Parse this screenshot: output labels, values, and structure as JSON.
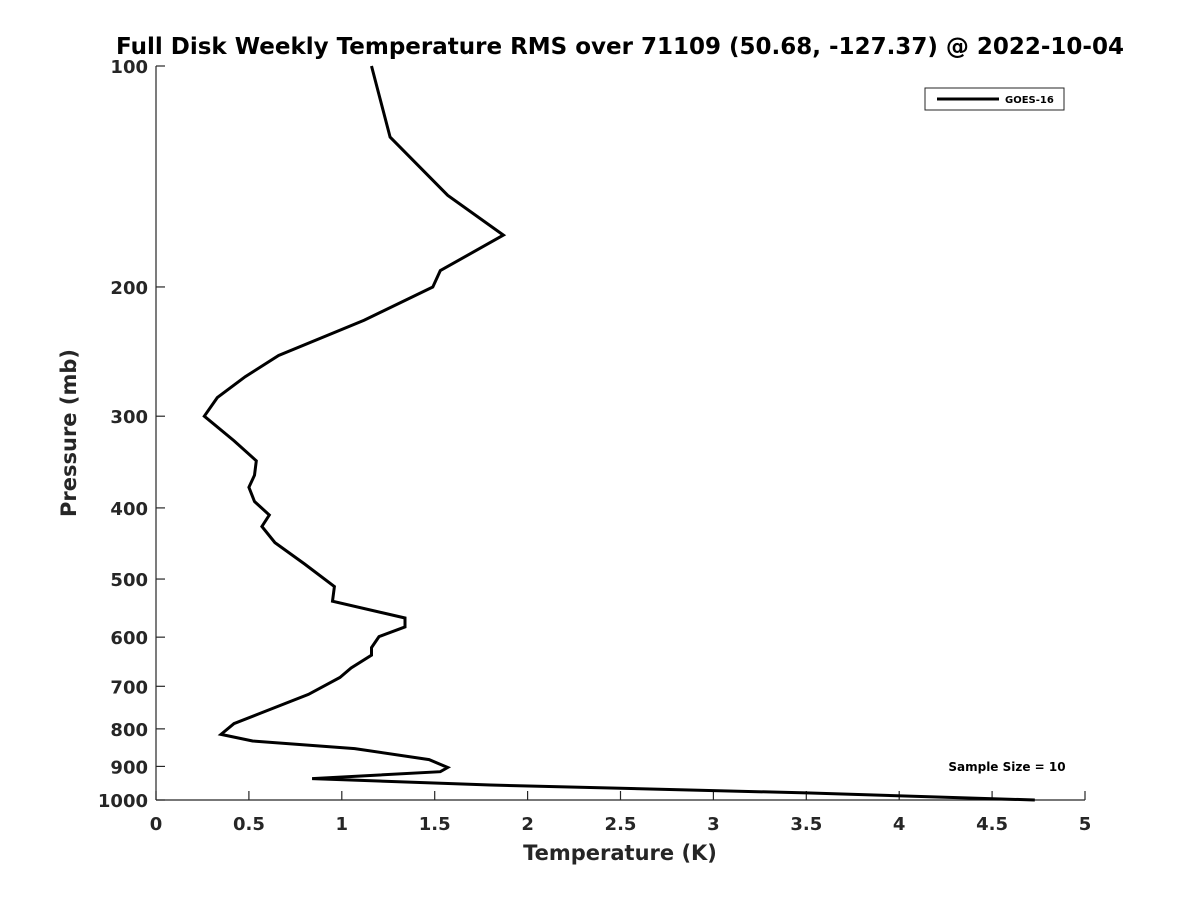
{
  "chart_data": {
    "type": "line",
    "title": "Full Disk Weekly Temperature RMS over 71109 (50.68, -127.37) @ 2022-10-04",
    "xlabel": "Temperature (K)",
    "ylabel": "Pressure (mb)",
    "xlim": [
      0,
      5
    ],
    "ylim": [
      100,
      1000
    ],
    "y_scale": "log",
    "y_reversed": true,
    "grid": false,
    "x_ticks": [
      0,
      0.5,
      1,
      1.5,
      2,
      2.5,
      3,
      3.5,
      4,
      4.5,
      5
    ],
    "x_tick_labels": [
      "0",
      "0.5",
      "1",
      "1.5",
      "2",
      "2.5",
      "3",
      "3.5",
      "4",
      "4.5",
      "5"
    ],
    "y_ticks": [
      100,
      200,
      300,
      400,
      500,
      600,
      700,
      800,
      900,
      1000
    ],
    "y_tick_labels": [
      "100",
      "200",
      "300",
      "400",
      "500",
      "600",
      "700",
      "800",
      "900",
      "1000"
    ],
    "legend": {
      "position": "top-right",
      "entries": [
        "GOES-16"
      ]
    },
    "annotation": "Sample Size = 10",
    "line_color": "#000000",
    "series": [
      {
        "name": "GOES-16",
        "points": [
          [
            1.16,
            100
          ],
          [
            1.26,
            125
          ],
          [
            1.57,
            150
          ],
          [
            1.87,
            170
          ],
          [
            1.53,
            190
          ],
          [
            1.49,
            200
          ],
          [
            1.12,
            222
          ],
          [
            0.66,
            248
          ],
          [
            0.48,
            265
          ],
          [
            0.33,
            283
          ],
          [
            0.26,
            300
          ],
          [
            0.42,
            324
          ],
          [
            0.54,
            345
          ],
          [
            0.53,
            361
          ],
          [
            0.5,
            375
          ],
          [
            0.53,
            392
          ],
          [
            0.61,
            409
          ],
          [
            0.57,
            424
          ],
          [
            0.64,
            446
          ],
          [
            0.8,
            477
          ],
          [
            0.96,
            512
          ],
          [
            0.95,
            536
          ],
          [
            1.34,
            565
          ],
          [
            1.34,
            581
          ],
          [
            1.2,
            599
          ],
          [
            1.16,
            620
          ],
          [
            1.16,
            635
          ],
          [
            1.05,
            661
          ],
          [
            0.99,
            681
          ],
          [
            0.82,
            718
          ],
          [
            0.56,
            762
          ],
          [
            0.42,
            787
          ],
          [
            0.35,
            814
          ],
          [
            0.52,
            831
          ],
          [
            1.07,
            851
          ],
          [
            1.47,
            881
          ],
          [
            1.57,
            903
          ],
          [
            1.53,
            915
          ],
          [
            0.84,
            935
          ],
          [
            1.8,
            954
          ],
          [
            3.5,
            978
          ],
          [
            4.73,
            1000
          ]
        ]
      }
    ]
  }
}
